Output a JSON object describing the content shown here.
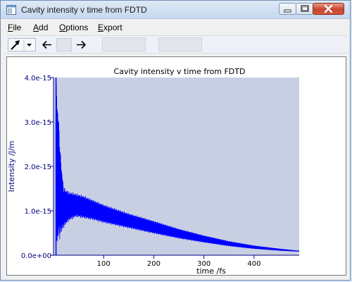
{
  "window": {
    "title": "Cavity intensity v time from FDTD"
  },
  "menu": {
    "items": [
      {
        "label": "File",
        "u": "F",
        "rest": "ile"
      },
      {
        "label": "Add",
        "u": "A",
        "rest": "dd"
      },
      {
        "label": "Options",
        "u": "O",
        "rest": "ptions"
      },
      {
        "label": "Export",
        "u": "E",
        "rest": "xport"
      }
    ]
  },
  "toolbar": {
    "pointer_icon": "arrow-pointer-icon",
    "back_icon": "arrow-left-icon",
    "forward_icon": "arrow-right-icon"
  },
  "colors": {
    "plot_background": "#c8cfe2",
    "series": "#0000ff",
    "axis_text": "#00007f"
  },
  "chart_data": {
    "type": "line",
    "title": "Cavity intensity v time from FDTD",
    "xlabel": "time /fs",
    "ylabel": "Intensity /J/m",
    "xlim": [
      0,
      490
    ],
    "ylim": [
      0,
      4e-15
    ],
    "x_ticks": [
      100,
      200,
      300,
      400
    ],
    "x_tick_labels": [
      "100",
      "200",
      "300",
      "400"
    ],
    "y_ticks": [
      0,
      1e-15,
      2e-15,
      3e-15,
      4e-15
    ],
    "y_tick_labels": [
      "0.0e+00",
      "1.0e-15",
      "2.0e-15",
      "3.0e-15",
      "4.0e-15"
    ],
    "grid": false,
    "series": [
      {
        "color": "#0000ff",
        "envelope_upper": [
          {
            "x": 5,
            "y": 4e-15
          },
          {
            "x": 10,
            "y": 3.2e-15
          },
          {
            "x": 14,
            "y": 2.3e-15
          },
          {
            "x": 20,
            "y": 1.55e-15
          },
          {
            "x": 30,
            "y": 1.45e-15
          },
          {
            "x": 45,
            "y": 1.4e-15
          },
          {
            "x": 60,
            "y": 1.35e-15
          },
          {
            "x": 80,
            "y": 1.25e-15
          },
          {
            "x": 100,
            "y": 1.15e-15
          },
          {
            "x": 150,
            "y": 9.5e-16
          },
          {
            "x": 200,
            "y": 7.8e-16
          },
          {
            "x": 250,
            "y": 6e-16
          },
          {
            "x": 300,
            "y": 4.5e-16
          },
          {
            "x": 350,
            "y": 3.2e-16
          },
          {
            "x": 400,
            "y": 2.2e-16
          },
          {
            "x": 450,
            "y": 1.5e-16
          },
          {
            "x": 490,
            "y": 1e-16
          }
        ],
        "envelope_lower": [
          {
            "x": 5,
            "y": 0.0
          },
          {
            "x": 10,
            "y": 3e-16
          },
          {
            "x": 14,
            "y": 4e-16
          },
          {
            "x": 20,
            "y": 6e-16
          },
          {
            "x": 30,
            "y": 7.5e-16
          },
          {
            "x": 45,
            "y": 8.5e-16
          },
          {
            "x": 60,
            "y": 8.2e-16
          },
          {
            "x": 80,
            "y": 7.8e-16
          },
          {
            "x": 100,
            "y": 7.2e-16
          },
          {
            "x": 150,
            "y": 6e-16
          },
          {
            "x": 200,
            "y": 4.8e-16
          },
          {
            "x": 250,
            "y": 3.7e-16
          },
          {
            "x": 300,
            "y": 2.8e-16
          },
          {
            "x": 350,
            "y": 2e-16
          },
          {
            "x": 400,
            "y": 1.4e-16
          },
          {
            "x": 450,
            "y": 1e-16
          },
          {
            "x": 490,
            "y": 8e-17
          }
        ]
      }
    ]
  }
}
